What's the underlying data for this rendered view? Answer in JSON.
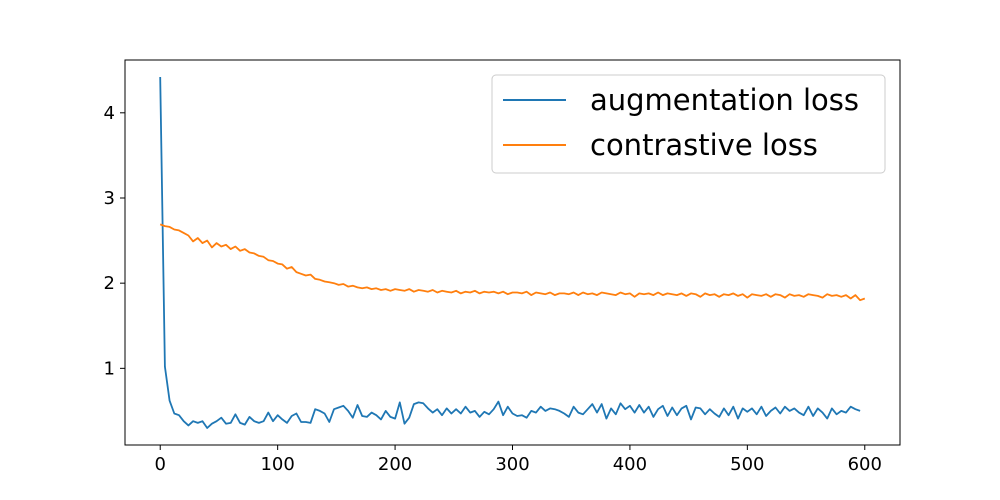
{
  "chart_data": {
    "type": "line",
    "title": "",
    "xlabel": "",
    "ylabel": "",
    "xlim": [
      -30,
      630
    ],
    "ylim": [
      0.1,
      4.62
    ],
    "x_ticks": [
      0,
      100,
      200,
      300,
      400,
      500,
      600
    ],
    "y_ticks": [
      1,
      2,
      3,
      4
    ],
    "grid": false,
    "legend": "top-right",
    "series": [
      {
        "name": "augmentation loss",
        "color": "#1f77b4",
        "x": [
          0,
          4,
          8,
          12,
          16,
          20,
          24,
          28,
          32,
          36,
          40,
          44,
          48,
          52,
          56,
          60,
          64,
          68,
          72,
          76,
          80,
          84,
          88,
          92,
          96,
          100,
          104,
          108,
          112,
          116,
          120,
          124,
          128,
          132,
          136,
          140,
          144,
          148,
          152,
          156,
          160,
          164,
          168,
          172,
          176,
          180,
          184,
          188,
          192,
          196,
          200,
          204,
          208,
          212,
          216,
          220,
          224,
          228,
          232,
          236,
          240,
          244,
          248,
          252,
          256,
          260,
          264,
          268,
          272,
          276,
          280,
          284,
          288,
          292,
          296,
          300,
          304,
          308,
          312,
          316,
          320,
          324,
          328,
          332,
          336,
          340,
          344,
          348,
          352,
          356,
          360,
          364,
          368,
          372,
          376,
          380,
          384,
          388,
          392,
          396,
          400,
          404,
          408,
          412,
          416,
          420,
          424,
          428,
          432,
          436,
          440,
          444,
          448,
          452,
          456,
          460,
          464,
          468,
          472,
          476,
          480,
          484,
          488,
          492,
          496,
          500,
          504,
          508,
          512,
          516,
          520,
          524,
          528,
          532,
          536,
          540,
          544,
          548,
          552,
          556,
          560,
          564,
          568,
          572,
          576,
          580,
          584,
          588,
          592,
          596
        ],
        "values": [
          4.42,
          1.02,
          0.62,
          0.47,
          0.45,
          0.38,
          0.33,
          0.38,
          0.36,
          0.38,
          0.3,
          0.35,
          0.38,
          0.42,
          0.35,
          0.36,
          0.46,
          0.36,
          0.34,
          0.43,
          0.38,
          0.36,
          0.38,
          0.48,
          0.38,
          0.45,
          0.4,
          0.36,
          0.44,
          0.47,
          0.37,
          0.37,
          0.36,
          0.52,
          0.5,
          0.47,
          0.37,
          0.52,
          0.54,
          0.56,
          0.5,
          0.42,
          0.57,
          0.44,
          0.43,
          0.48,
          0.45,
          0.4,
          0.5,
          0.43,
          0.41,
          0.6,
          0.35,
          0.42,
          0.58,
          0.6,
          0.59,
          0.53,
          0.48,
          0.52,
          0.45,
          0.53,
          0.47,
          0.52,
          0.47,
          0.55,
          0.48,
          0.5,
          0.43,
          0.49,
          0.46,
          0.52,
          0.61,
          0.45,
          0.55,
          0.47,
          0.44,
          0.45,
          0.42,
          0.5,
          0.48,
          0.55,
          0.5,
          0.53,
          0.52,
          0.5,
          0.47,
          0.43,
          0.55,
          0.48,
          0.46,
          0.52,
          0.58,
          0.48,
          0.58,
          0.41,
          0.53,
          0.46,
          0.59,
          0.52,
          0.56,
          0.48,
          0.57,
          0.48,
          0.55,
          0.43,
          0.52,
          0.56,
          0.44,
          0.54,
          0.45,
          0.53,
          0.56,
          0.4,
          0.54,
          0.53,
          0.46,
          0.52,
          0.47,
          0.43,
          0.53,
          0.45,
          0.55,
          0.41,
          0.53,
          0.49,
          0.53,
          0.46,
          0.55,
          0.44,
          0.5,
          0.54,
          0.47,
          0.55,
          0.5,
          0.53,
          0.48,
          0.45,
          0.55,
          0.44,
          0.53,
          0.48,
          0.41,
          0.53,
          0.46,
          0.5,
          0.48,
          0.55,
          0.52,
          0.5
        ]
      },
      {
        "name": "contrastive loss",
        "color": "#ff7f0e",
        "x": [
          0,
          4,
          8,
          12,
          16,
          20,
          24,
          28,
          32,
          36,
          40,
          44,
          48,
          52,
          56,
          60,
          64,
          68,
          72,
          76,
          80,
          84,
          88,
          92,
          96,
          100,
          104,
          108,
          112,
          116,
          120,
          124,
          128,
          132,
          136,
          140,
          144,
          148,
          152,
          156,
          160,
          164,
          168,
          172,
          176,
          180,
          184,
          188,
          192,
          196,
          200,
          204,
          208,
          212,
          216,
          220,
          224,
          228,
          232,
          236,
          240,
          244,
          248,
          252,
          256,
          260,
          264,
          268,
          272,
          276,
          280,
          284,
          288,
          292,
          296,
          300,
          304,
          308,
          312,
          316,
          320,
          324,
          328,
          332,
          336,
          340,
          344,
          348,
          352,
          356,
          360,
          364,
          368,
          372,
          376,
          380,
          384,
          388,
          392,
          396,
          400,
          404,
          408,
          412,
          416,
          420,
          424,
          428,
          432,
          436,
          440,
          444,
          448,
          452,
          456,
          460,
          464,
          468,
          472,
          476,
          480,
          484,
          488,
          492,
          496,
          500,
          504,
          508,
          512,
          516,
          520,
          524,
          528,
          532,
          536,
          540,
          544,
          548,
          552,
          556,
          560,
          564,
          568,
          572,
          576,
          580,
          584,
          588,
          592,
          596,
          600
        ],
        "values": [
          2.69,
          2.67,
          2.66,
          2.63,
          2.62,
          2.59,
          2.56,
          2.49,
          2.53,
          2.47,
          2.5,
          2.42,
          2.47,
          2.43,
          2.45,
          2.4,
          2.43,
          2.38,
          2.4,
          2.36,
          2.35,
          2.32,
          2.31,
          2.27,
          2.26,
          2.23,
          2.22,
          2.17,
          2.19,
          2.13,
          2.11,
          2.09,
          2.1,
          2.05,
          2.04,
          2.02,
          2.01,
          2.0,
          1.98,
          1.99,
          1.96,
          1.97,
          1.95,
          1.94,
          1.95,
          1.93,
          1.94,
          1.92,
          1.93,
          1.91,
          1.93,
          1.92,
          1.91,
          1.93,
          1.9,
          1.92,
          1.91,
          1.9,
          1.92,
          1.89,
          1.91,
          1.9,
          1.89,
          1.91,
          1.88,
          1.9,
          1.89,
          1.91,
          1.88,
          1.9,
          1.89,
          1.9,
          1.88,
          1.9,
          1.87,
          1.89,
          1.89,
          1.88,
          1.9,
          1.86,
          1.89,
          1.88,
          1.87,
          1.89,
          1.86,
          1.88,
          1.88,
          1.87,
          1.89,
          1.86,
          1.89,
          1.87,
          1.88,
          1.86,
          1.89,
          1.88,
          1.87,
          1.86,
          1.89,
          1.87,
          1.88,
          1.84,
          1.88,
          1.87,
          1.88,
          1.86,
          1.89,
          1.86,
          1.88,
          1.87,
          1.86,
          1.88,
          1.85,
          1.88,
          1.87,
          1.84,
          1.88,
          1.86,
          1.87,
          1.84,
          1.87,
          1.86,
          1.88,
          1.85,
          1.87,
          1.83,
          1.87,
          1.86,
          1.85,
          1.87,
          1.84,
          1.87,
          1.86,
          1.83,
          1.87,
          1.85,
          1.86,
          1.84,
          1.87,
          1.86,
          1.85,
          1.83,
          1.87,
          1.85,
          1.86,
          1.84,
          1.86,
          1.82,
          1.86,
          1.8,
          1.82
        ]
      }
    ]
  }
}
